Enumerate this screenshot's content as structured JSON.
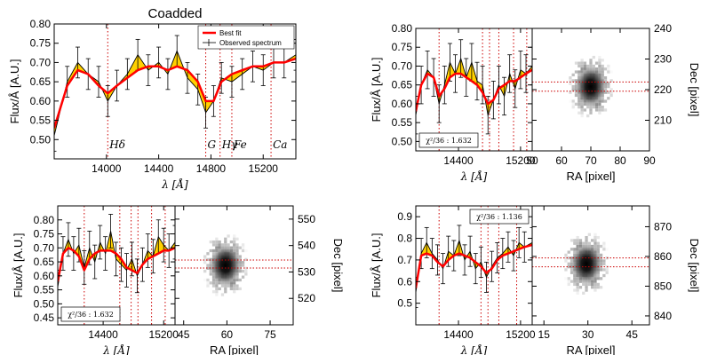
{
  "colors": {
    "fit": "#ff0000",
    "fill": "#ffd000",
    "data": "#000000",
    "marker": "#cc0000"
  },
  "chart_data": [
    {
      "id": "coadded",
      "type": "line",
      "title": "Coadded",
      "xlabel": "λ [Å]",
      "ylabel": "Flux/Å [A.U.]",
      "xlim": [
        13600,
        15450
      ],
      "ylim": [
        0.45,
        0.8
      ],
      "xticks": [
        14000,
        14400,
        14800,
        15200
      ],
      "yticks": [
        0.5,
        0.55,
        0.6,
        0.65,
        0.7,
        0.75,
        0.8
      ],
      "x": [
        13600,
        13700,
        13780,
        13860,
        13940,
        14010,
        14080,
        14160,
        14240,
        14320,
        14400,
        14470,
        14540,
        14620,
        14700,
        14760,
        14820,
        14880,
        14960,
        15040,
        15120,
        15200,
        15280,
        15360,
        15450
      ],
      "observed": [
        0.51,
        0.65,
        0.7,
        0.67,
        0.65,
        0.6,
        0.64,
        0.67,
        0.72,
        0.68,
        0.7,
        0.67,
        0.73,
        0.66,
        0.63,
        0.57,
        0.6,
        0.66,
        0.65,
        0.67,
        0.69,
        0.68,
        0.7,
        0.7,
        0.72
      ],
      "errors": [
        0.04,
        0.04,
        0.04,
        0.04,
        0.04,
        0.04,
        0.04,
        0.04,
        0.04,
        0.04,
        0.04,
        0.04,
        0.04,
        0.04,
        0.04,
        0.04,
        0.04,
        0.04,
        0.04,
        0.04,
        0.04,
        0.04,
        0.04,
        0.04,
        0.04
      ],
      "best_fit": [
        0.53,
        0.64,
        0.68,
        0.67,
        0.64,
        0.62,
        0.64,
        0.66,
        0.68,
        0.69,
        0.69,
        0.68,
        0.69,
        0.68,
        0.65,
        0.6,
        0.6,
        0.65,
        0.67,
        0.68,
        0.69,
        0.69,
        0.7,
        0.7,
        0.71
      ],
      "lines": [
        {
          "label": "Hδ",
          "x": 14010
        },
        {
          "label": "G",
          "x": 14760
        },
        {
          "label": "Hγ",
          "x": 14870
        },
        {
          "label": "Fe",
          "x": 14960
        },
        {
          "label": "Ca",
          "x": 15260
        }
      ],
      "legend": {
        "position": "top-right",
        "fit_label": "Best fit",
        "data_label": "Observed spectrum"
      }
    },
    {
      "id": "spec1",
      "type": "line",
      "xlabel": "λ [Å]",
      "ylabel": "Flux/Å [A.U.]",
      "xlim": [
        13850,
        15350
      ],
      "ylim": [
        0.475,
        0.8
      ],
      "xticks": [
        14400,
        15200
      ],
      "yticks": [
        0.5,
        0.55,
        0.6,
        0.65,
        0.7,
        0.75,
        0.8
      ],
      "x": [
        13850,
        13920,
        14000,
        14080,
        14150,
        14220,
        14290,
        14360,
        14430,
        14500,
        14570,
        14640,
        14710,
        14780,
        14850,
        14920,
        14990,
        15060,
        15130,
        15200,
        15270,
        15350
      ],
      "observed": [
        0.57,
        0.65,
        0.69,
        0.67,
        0.6,
        0.65,
        0.71,
        0.68,
        0.72,
        0.67,
        0.71,
        0.66,
        0.65,
        0.57,
        0.61,
        0.65,
        0.62,
        0.68,
        0.64,
        0.69,
        0.68,
        0.7
      ],
      "errors": [
        0.05,
        0.05,
        0.05,
        0.05,
        0.05,
        0.05,
        0.05,
        0.05,
        0.05,
        0.05,
        0.05,
        0.05,
        0.05,
        0.05,
        0.05,
        0.05,
        0.05,
        0.05,
        0.05,
        0.05,
        0.05,
        0.05
      ],
      "best_fit": [
        0.58,
        0.65,
        0.68,
        0.67,
        0.62,
        0.64,
        0.67,
        0.68,
        0.68,
        0.67,
        0.66,
        0.65,
        0.63,
        0.6,
        0.61,
        0.64,
        0.65,
        0.66,
        0.66,
        0.67,
        0.68,
        0.69
      ],
      "lines_x": [
        14150,
        14710,
        14800,
        14920,
        15110,
        15280
      ],
      "chi_text": "χ²/36 : 1.632",
      "chi_position": "bottom-left"
    },
    {
      "id": "img1",
      "type": "heatmap",
      "xlabel": "RA [pixel]",
      "ylabel": "Dec [pixel]",
      "xlim": [
        50,
        90
      ],
      "ylim": [
        200,
        240
      ],
      "xticks": [
        50,
        60,
        70,
        80,
        90
      ],
      "yticks": [
        210,
        220,
        230,
        240
      ],
      "center": [
        70,
        221
      ],
      "crosshair_y": [
        219.5,
        222.5
      ]
    },
    {
      "id": "spec2",
      "type": "line",
      "xlabel": "λ [Å]",
      "ylabel": "Flux/Å [A.U.]",
      "xlim": [
        13800,
        15350
      ],
      "ylim": [
        0.425,
        0.85
      ],
      "xticks": [
        14400,
        15200
      ],
      "yticks": [
        0.45,
        0.5,
        0.55,
        0.6,
        0.65,
        0.7,
        0.75,
        0.8
      ],
      "x": [
        13800,
        13870,
        13940,
        14010,
        14080,
        14150,
        14220,
        14290,
        14360,
        14430,
        14500,
        14570,
        14640,
        14710,
        14780,
        14850,
        14920,
        14990,
        15060,
        15130,
        15200,
        15270,
        15350
      ],
      "observed": [
        0.56,
        0.68,
        0.73,
        0.68,
        0.71,
        0.63,
        0.7,
        0.65,
        0.72,
        0.68,
        0.76,
        0.66,
        0.64,
        0.62,
        0.66,
        0.6,
        0.64,
        0.69,
        0.67,
        0.74,
        0.71,
        0.69,
        0.72
      ],
      "errors": [
        0.06,
        0.06,
        0.06,
        0.06,
        0.06,
        0.06,
        0.06,
        0.06,
        0.06,
        0.06,
        0.06,
        0.06,
        0.06,
        0.06,
        0.06,
        0.06,
        0.06,
        0.06,
        0.06,
        0.06,
        0.06,
        0.06,
        0.06
      ],
      "best_fit": [
        0.58,
        0.68,
        0.7,
        0.69,
        0.67,
        0.62,
        0.66,
        0.68,
        0.69,
        0.69,
        0.69,
        0.68,
        0.66,
        0.63,
        0.62,
        0.61,
        0.64,
        0.66,
        0.67,
        0.68,
        0.69,
        0.69,
        0.7
      ],
      "lines_x": [
        14150,
        14620,
        14770,
        14860,
        15040,
        15220
      ],
      "chi_text": "χ²/36 : 1.632",
      "chi_position": "bottom-left"
    },
    {
      "id": "img2",
      "type": "heatmap",
      "xlabel": "RA [pixel]",
      "xlim": [
        42,
        83
      ],
      "ylim": [
        510,
        555
      ],
      "xticks": [
        45,
        60,
        75
      ],
      "yticks": [
        520,
        530,
        540,
        550
      ],
      "ylabel": "Dec [pixel]",
      "center": [
        59.5,
        532.5
      ],
      "crosshair_y": [
        531.5,
        534.5
      ]
    },
    {
      "id": "spec3",
      "type": "line",
      "xlabel": "λ [Å]",
      "ylabel": "Flux/Å [A.U.]",
      "xlim": [
        13850,
        15350
      ],
      "ylim": [
        0.4,
        0.95
      ],
      "xticks": [
        14400,
        15200
      ],
      "yticks": [
        0.5,
        0.6,
        0.7,
        0.8,
        0.9
      ],
      "x": [
        13850,
        13920,
        13990,
        14060,
        14130,
        14200,
        14270,
        14340,
        14410,
        14480,
        14550,
        14620,
        14690,
        14760,
        14830,
        14900,
        14970,
        15040,
        15110,
        15180,
        15250,
        15350
      ],
      "observed": [
        0.55,
        0.73,
        0.78,
        0.73,
        0.7,
        0.66,
        0.74,
        0.72,
        0.79,
        0.7,
        0.74,
        0.66,
        0.69,
        0.62,
        0.67,
        0.71,
        0.73,
        0.76,
        0.72,
        0.78,
        0.76,
        0.78
      ],
      "errors": [
        0.07,
        0.07,
        0.07,
        0.07,
        0.07,
        0.07,
        0.07,
        0.07,
        0.07,
        0.07,
        0.07,
        0.07,
        0.07,
        0.07,
        0.07,
        0.07,
        0.07,
        0.07,
        0.07,
        0.07,
        0.07,
        0.07
      ],
      "best_fit": [
        0.57,
        0.72,
        0.73,
        0.72,
        0.69,
        0.67,
        0.7,
        0.72,
        0.73,
        0.72,
        0.71,
        0.69,
        0.67,
        0.64,
        0.66,
        0.7,
        0.72,
        0.73,
        0.74,
        0.75,
        0.76,
        0.77
      ],
      "lines_x": [
        14150,
        14690,
        14780,
        14920,
        15150
      ],
      "chi_text": "χ²/36 : 1.136",
      "chi_position": "top-right"
    },
    {
      "id": "img3",
      "type": "heatmap",
      "xlabel": "RA [pixel]",
      "ylabel": "Dec [pixel]",
      "xlim": [
        11,
        51
      ],
      "ylim": [
        837,
        877
      ],
      "xticks": [
        15,
        30,
        45
      ],
      "yticks": [
        840,
        850,
        860,
        870
      ],
      "center": [
        29.5,
        857.5
      ],
      "crosshair_y": [
        856.5,
        859.5
      ]
    }
  ]
}
